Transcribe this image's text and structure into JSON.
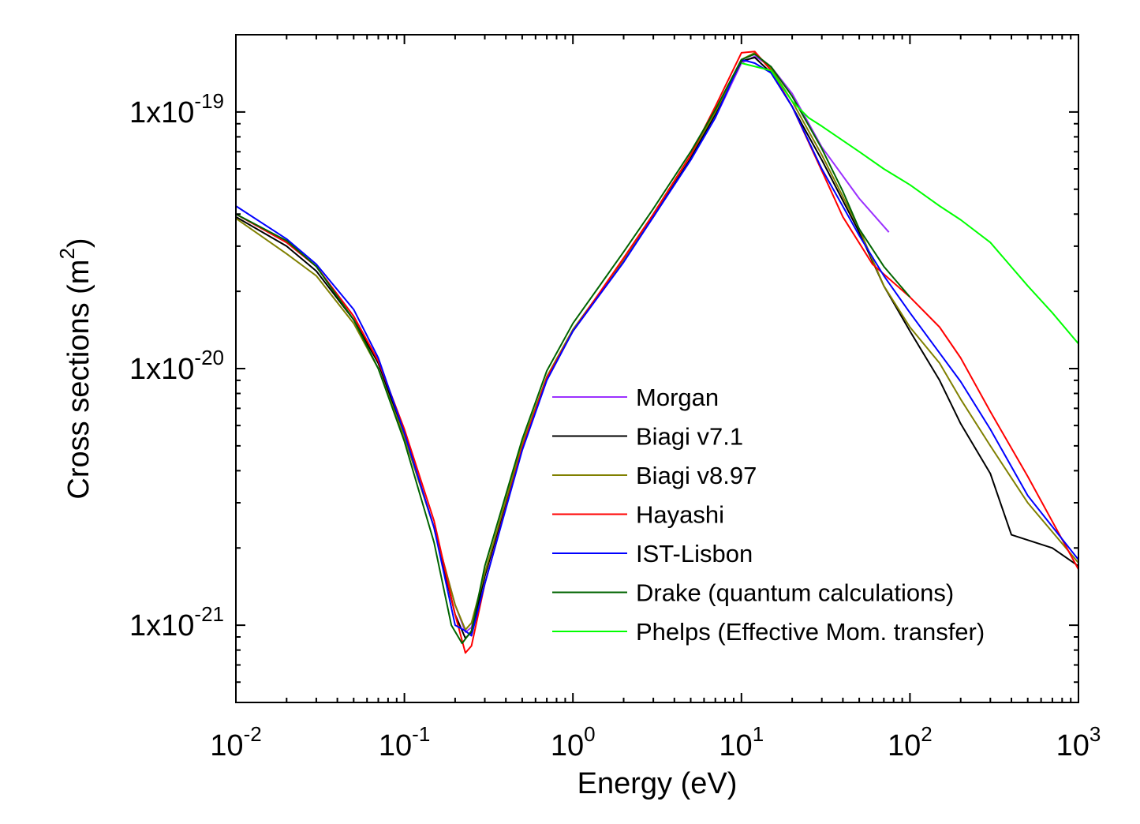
{
  "chart_data": {
    "type": "line",
    "xscale": "log",
    "yscale": "log",
    "xlim": [
      0.01,
      1000
    ],
    "ylim": [
      5e-22,
      2e-19
    ],
    "xlabel": "Energy (eV)",
    "ylabel": "Cross sections (m²)",
    "ylabel_main": "Cross sections (m",
    "ylabel_sup": "2",
    "ylabel_close": ")",
    "legend_position": "lower-right",
    "grid": false,
    "x_ticks": [
      {
        "value": 0.01,
        "base": "10",
        "exp": "-2"
      },
      {
        "value": 0.1,
        "base": "10",
        "exp": "-1"
      },
      {
        "value": 1,
        "base": "10",
        "exp": "0"
      },
      {
        "value": 10,
        "base": "10",
        "exp": "1"
      },
      {
        "value": 100,
        "base": "10",
        "exp": "2"
      },
      {
        "value": 1000,
        "base": "10",
        "exp": "3"
      }
    ],
    "y_ticks": [
      {
        "value": 1e-21,
        "base": "1x10",
        "exp": "-21"
      },
      {
        "value": 1e-20,
        "base": "1x10",
        "exp": "-20"
      },
      {
        "value": 1e-19,
        "base": "1x10",
        "exp": "-19"
      }
    ],
    "series": [
      {
        "name": "Morgan",
        "color": "#9b30ff",
        "x": [
          0.01,
          0.02,
          0.03,
          0.05,
          0.07,
          0.1,
          0.15,
          0.2,
          0.23,
          0.25,
          0.3,
          0.5,
          0.7,
          1,
          2,
          3,
          5,
          7,
          10,
          12,
          15,
          20,
          30,
          50,
          75
        ],
        "y": [
          4e-20,
          3.1e-20,
          2.5e-20,
          1.6e-20,
          1.05e-20,
          5.6e-21,
          2.4e-21,
          1.2e-21,
          9.4e-22,
          9.8e-22,
          1.55e-21,
          5e-21,
          9.2e-21,
          1.4e-20,
          2.6e-20,
          3.9e-20,
          6.5e-20,
          9.5e-20,
          1.55e-19,
          1.65e-19,
          1.5e-19,
          1.18e-19,
          7.3e-20,
          4.6e-20,
          3.4e-20
        ]
      },
      {
        "name": "Biagi v7.1",
        "color": "#000000",
        "x": [
          0.01,
          0.02,
          0.03,
          0.05,
          0.07,
          0.1,
          0.15,
          0.2,
          0.23,
          0.25,
          0.3,
          0.5,
          0.7,
          1,
          2,
          3,
          5,
          7,
          10,
          12,
          15,
          20,
          30,
          50,
          70,
          100,
          150,
          200,
          300,
          400,
          700,
          1000
        ],
        "y": [
          3.9e-20,
          3e-20,
          2.4e-20,
          1.55e-20,
          1.05e-20,
          5.5e-21,
          2.4e-21,
          1.1e-21,
          8.9e-22,
          9.4e-22,
          1.55e-21,
          5e-21,
          9.2e-21,
          1.4e-20,
          2.65e-20,
          3.9e-20,
          6.6e-20,
          9.8e-20,
          1.58e-19,
          1.63e-19,
          1.42e-19,
          1.05e-19,
          6.5e-20,
          3.4e-20,
          2.1e-20,
          1.4e-20,
          9e-21,
          6.1e-21,
          3.9e-21,
          2.25e-21,
          2e-21,
          1.7e-21
        ]
      },
      {
        "name": "Biagi v8.97",
        "color": "#808000",
        "x": [
          0.01,
          0.02,
          0.03,
          0.05,
          0.07,
          0.1,
          0.15,
          0.2,
          0.23,
          0.25,
          0.3,
          0.5,
          0.7,
          1,
          2,
          3,
          5,
          7,
          10,
          12,
          15,
          20,
          30,
          50,
          70,
          100,
          150,
          200,
          300,
          500,
          1000
        ],
        "y": [
          3.85e-20,
          2.8e-20,
          2.3e-20,
          1.5e-20,
          1e-20,
          5.4e-21,
          2.4e-21,
          1.2e-21,
          9.6e-22,
          1.02e-21,
          1.6e-21,
          5.1e-21,
          9.3e-21,
          1.42e-20,
          2.65e-20,
          4e-20,
          6.8e-20,
          1e-19,
          1.6e-19,
          1.7e-19,
          1.48e-19,
          1.1e-19,
          6.8e-20,
          3.5e-20,
          2.1e-20,
          1.45e-20,
          1.05e-20,
          7.6e-21,
          5e-21,
          3e-21,
          1.75e-21
        ]
      },
      {
        "name": "Hayashi",
        "color": "#ff0000",
        "x": [
          0.01,
          0.02,
          0.03,
          0.05,
          0.07,
          0.1,
          0.15,
          0.2,
          0.23,
          0.25,
          0.3,
          0.5,
          0.7,
          1,
          2,
          3,
          5,
          7,
          10,
          12,
          15,
          20,
          30,
          40,
          60,
          100,
          150,
          200,
          300,
          500,
          1000
        ],
        "y": [
          4e-20,
          3.1e-20,
          2.5e-20,
          1.6e-20,
          1.07e-20,
          5.8e-21,
          2.55e-21,
          1.1e-21,
          7.8e-22,
          8.3e-22,
          1.45e-21,
          4.9e-21,
          9.2e-21,
          1.4e-20,
          2.7e-20,
          4e-20,
          6.8e-20,
          1.05e-19,
          1.7e-19,
          1.72e-19,
          1.45e-19,
          1.05e-19,
          5.9e-20,
          3.9e-20,
          2.55e-20,
          1.9e-20,
          1.45e-20,
          1.1e-20,
          6.8e-21,
          3.8e-21,
          1.65e-21
        ]
      },
      {
        "name": "IST-Lisbon",
        "color": "#0000ff",
        "x": [
          0.01,
          0.02,
          0.03,
          0.05,
          0.07,
          0.1,
          0.15,
          0.2,
          0.23,
          0.25,
          0.3,
          0.5,
          0.7,
          1,
          2,
          3,
          5,
          7,
          10,
          12,
          15,
          20,
          30,
          50,
          70,
          100,
          150,
          200,
          300,
          500,
          1000
        ],
        "y": [
          4.3e-20,
          3.2e-20,
          2.55e-20,
          1.7e-20,
          1.1e-20,
          5.6e-21,
          2.4e-21,
          1e-21,
          9.5e-22,
          9.1e-22,
          1.45e-21,
          4.8e-21,
          9e-21,
          1.4e-20,
          2.6e-20,
          3.9e-20,
          6.5e-20,
          9.5e-20,
          1.6e-19,
          1.55e-19,
          1.42e-19,
          1.05e-19,
          6e-20,
          3.3e-20,
          2.3e-20,
          1.65e-20,
          1.15e-20,
          8.9e-21,
          5.8e-21,
          3.2e-21,
          1.8e-21
        ]
      },
      {
        "name": "Drake (quantum calculations)",
        "color": "#006400",
        "x": [
          0.01,
          0.02,
          0.03,
          0.05,
          0.07,
          0.1,
          0.15,
          0.19,
          0.22,
          0.25,
          0.3,
          0.5,
          0.7,
          1,
          2,
          3,
          5,
          7,
          10,
          12,
          15,
          20,
          30,
          40,
          50,
          70,
          100
        ],
        "y": [
          4e-20,
          3.15e-20,
          2.5e-20,
          1.55e-20,
          1e-20,
          5.2e-21,
          2.1e-21,
          1e-21,
          8.5e-22,
          9.5e-22,
          1.7e-21,
          5.3e-21,
          9.8e-21,
          1.5e-20,
          2.85e-20,
          4.2e-20,
          7e-20,
          1.02e-19,
          1.6e-19,
          1.68e-19,
          1.5e-19,
          1.15e-19,
          7.2e-20,
          4.9e-20,
          3.5e-20,
          2.5e-20,
          1.9e-20
        ]
      },
      {
        "name": "Phelps (Effective Mom. transfer)",
        "color": "#00ff00",
        "x": [
          10,
          15,
          20,
          25,
          30,
          50,
          70,
          100,
          150,
          200,
          300,
          500,
          700,
          1000
        ],
        "y": [
          1.55e-19,
          1.45e-19,
          1.1e-19,
          9.5e-20,
          8.8e-20,
          7e-20,
          6e-20,
          5.2e-20,
          4.3e-20,
          3.8e-20,
          3.1e-20,
          2.1e-20,
          1.65e-20,
          1.25e-20
        ]
      }
    ]
  }
}
